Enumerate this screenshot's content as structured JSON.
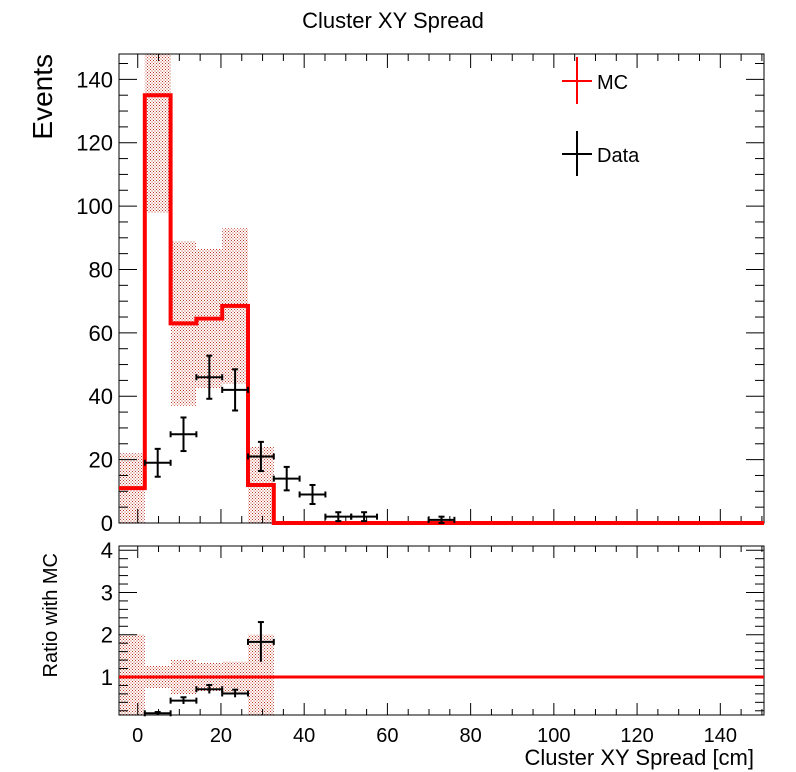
{
  "chart_data": [
    {
      "type": "histogram-with-errorbars",
      "title": "Cluster XY Spread",
      "ylabel": "Events",
      "xlabel": "",
      "xlim": [
        -4.5,
        150.5
      ],
      "ylim": [
        0,
        148
      ],
      "x_ticks": [
        0,
        20,
        40,
        60,
        80,
        100,
        120,
        140
      ],
      "y_ticks": [
        0,
        20,
        40,
        60,
        80,
        100,
        120,
        140
      ],
      "legend_placement": "top-right",
      "legend": [
        {
          "label": "MC",
          "color": "#ff0000"
        },
        {
          "label": "Data",
          "color": "#000000"
        }
      ],
      "bin_edges": [
        -4.5,
        1.7,
        7.9,
        14.1,
        20.3,
        26.5,
        32.7,
        38.9,
        45.1,
        51.3,
        57.5,
        63.7,
        69.9,
        76.1,
        82.3,
        88.5,
        94.7,
        100.9,
        107.1,
        113.3,
        119.5,
        125.7,
        131.9,
        138.1,
        144.3,
        150.5
      ],
      "series": [
        {
          "name": "MC",
          "kind": "step",
          "color": "#ff0000",
          "values": [
            11,
            135,
            63,
            64.5,
            68.5,
            12,
            0,
            0,
            0,
            0,
            0,
            0,
            0,
            0,
            0,
            0,
            0,
            0,
            0,
            0,
            0,
            0,
            0,
            0,
            0
          ],
          "errors": [
            11,
            37,
            26,
            22,
            24.5,
            12,
            0,
            0,
            0,
            0,
            0,
            0,
            0,
            0,
            0,
            0,
            0,
            0,
            0,
            0,
            0,
            0,
            0,
            0,
            0
          ]
        },
        {
          "name": "Data",
          "kind": "points",
          "color": "#000000",
          "values": [
            0,
            19,
            28,
            46,
            42,
            21,
            14,
            9,
            2,
            2,
            0,
            0,
            1,
            0,
            0,
            0,
            0,
            0,
            0,
            0,
            0,
            0,
            0,
            0,
            0
          ],
          "errors": [
            0,
            4.4,
            5.3,
            6.8,
            6.5,
            4.6,
            3.7,
            3,
            1.4,
            1.4,
            0,
            0,
            1,
            0,
            0,
            0,
            0,
            0,
            0,
            0,
            0,
            0,
            0,
            0,
            0
          ]
        }
      ]
    },
    {
      "type": "ratio",
      "title": "",
      "ylabel": "Ratio with MC",
      "xlabel": "Cluster XY Spread [cm]",
      "xlim": [
        -4.5,
        150.5
      ],
      "ylim": [
        0.1,
        4.1
      ],
      "x_ticks": [
        0,
        20,
        40,
        60,
        80,
        100,
        120,
        140
      ],
      "y_ticks": [
        1,
        2,
        3,
        4
      ],
      "reference_line": 1,
      "band": {
        "color": "#ff0000",
        "bins": [
          0,
          1,
          2,
          3,
          4,
          5
        ],
        "errors": [
          1.0,
          0.27,
          0.41,
          0.34,
          0.36,
          1.0
        ]
      },
      "points": {
        "color": "#000000",
        "bins": [
          1,
          2,
          3,
          4,
          5
        ],
        "values": [
          0.14,
          0.44,
          0.71,
          0.61,
          1.83
        ],
        "errors": [
          0.03,
          0.08,
          0.1,
          0.09,
          0.47
        ]
      }
    }
  ]
}
